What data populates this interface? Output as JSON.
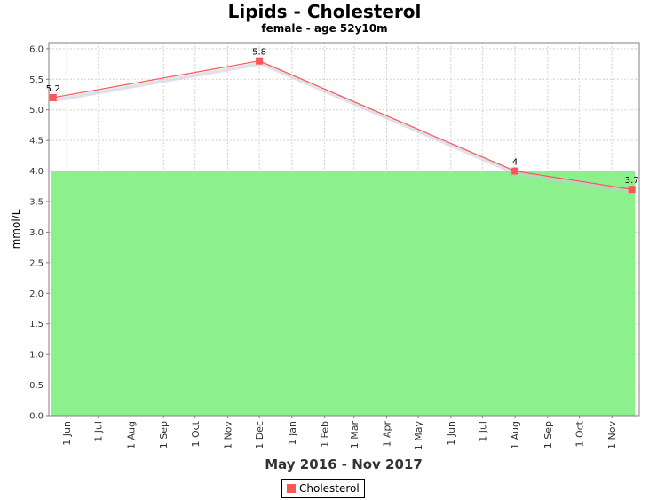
{
  "chart_data": {
    "type": "line",
    "title": "Lipids - Cholesterol",
    "subtitle": "female - age 52y10m",
    "xlabel": "May 2016 - Nov 2017",
    "ylabel": "mmol/L",
    "ylim": [
      0,
      6.1
    ],
    "yticks": [
      "0.0",
      "0.5",
      "1.0",
      "1.5",
      "2.0",
      "2.5",
      "3.0",
      "3.5",
      "4.0",
      "4.5",
      "5.0",
      "5.5",
      "6.0"
    ],
    "xlim": [
      "2016-05-15",
      "2017-11-27"
    ],
    "xticks": [
      {
        "date": "2016-06-01",
        "label": "1 Jun"
      },
      {
        "date": "2016-07-01",
        "label": "1 Jul"
      },
      {
        "date": "2016-08-01",
        "label": "1 Aug"
      },
      {
        "date": "2016-09-01",
        "label": "1 Sep"
      },
      {
        "date": "2016-10-01",
        "label": "1 Oct"
      },
      {
        "date": "2016-11-01",
        "label": "1 Nov"
      },
      {
        "date": "2016-12-01",
        "label": "1 Dec"
      },
      {
        "date": "2017-01-01",
        "label": "1 Jan"
      },
      {
        "date": "2017-02-01",
        "label": "1 Feb"
      },
      {
        "date": "2017-03-01",
        "label": "1 Mar"
      },
      {
        "date": "2017-04-01",
        "label": "1 Apr"
      },
      {
        "date": "2017-05-01",
        "label": "1 May"
      },
      {
        "date": "2017-06-01",
        "label": "1 Jun"
      },
      {
        "date": "2017-07-01",
        "label": "1 Jul"
      },
      {
        "date": "2017-08-01",
        "label": "1 Aug"
      },
      {
        "date": "2017-09-01",
        "label": "1 Sep"
      },
      {
        "date": "2017-10-01",
        "label": "1 Oct"
      },
      {
        "date": "2017-11-01",
        "label": "1 Nov"
      }
    ],
    "series": [
      {
        "name": "Cholesterol",
        "color": "#ff5555",
        "points": [
          {
            "x": "2016-05-19",
            "y": 5.2,
            "label": "5.2"
          },
          {
            "x": "2016-12-01",
            "y": 5.8,
            "label": "5.8"
          },
          {
            "x": "2017-08-01",
            "y": 4.0,
            "label": "4"
          },
          {
            "x": "2017-11-20",
            "y": 3.7,
            "label": "3.7"
          }
        ]
      }
    ],
    "target_range": {
      "from": 0,
      "to": 4.0,
      "x_from": "2016-05-17",
      "x_to": "2017-11-23",
      "color": "#8cf08c"
    },
    "grid": true,
    "legend": "bottom-center",
    "plot_background": "#ffffff",
    "grid_color": "#d0d0d0"
  }
}
